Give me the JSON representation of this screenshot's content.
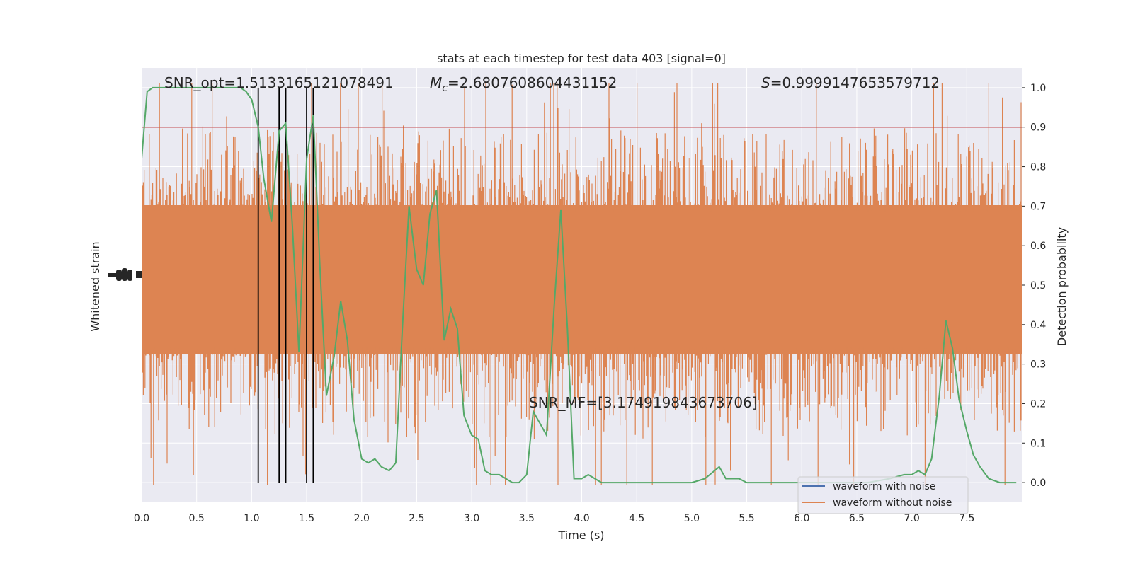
{
  "chart_data": {
    "type": "line",
    "title": "stats at each timestep for test data 403 [signal=0]",
    "xlabel": "Time (s)",
    "ylabel_left": "Whitened strain",
    "ylabel_right": "Detection probability",
    "xlim": [
      0.0,
      8.0
    ],
    "xticks": [
      "0.0",
      "0.5",
      "1.0",
      "1.5",
      "2.0",
      "2.5",
      "3.0",
      "3.5",
      "4.0",
      "4.5",
      "5.0",
      "5.5",
      "6.0",
      "6.5",
      "7.0",
      "7.5"
    ],
    "ylim_right": [
      -0.05,
      1.05
    ],
    "yticks_right": [
      "0.0",
      "0.1",
      "0.2",
      "0.3",
      "0.4",
      "0.5",
      "0.6",
      "0.7",
      "0.8",
      "0.9",
      "1.0"
    ],
    "threshold": 0.9,
    "detection_times": [
      1.06,
      1.25,
      1.31,
      1.5,
      1.56
    ],
    "annotations": {
      "snr_opt": "SNR_opt=1.5133165121078491",
      "mc_prefix": "M",
      "mc_sub": "c",
      "mc_value": "=2.6807608604431152",
      "s_prefix": "S",
      "s_value": "=0.9999147653579712",
      "snr_mf": "SNR_MF=[3.174919843673706]"
    },
    "legend": [
      "waveform with noise",
      "waveform without noise"
    ],
    "series": [
      {
        "name": "detection probability",
        "x": [
          0.0,
          0.05,
          0.1,
          0.15,
          0.2,
          0.25,
          0.3,
          0.35,
          0.4,
          0.45,
          0.5,
          0.55,
          0.6,
          0.65,
          0.7,
          0.75,
          0.8,
          0.85,
          0.9,
          0.95,
          1.0,
          1.06,
          1.11,
          1.18,
          1.25,
          1.31,
          1.37,
          1.43,
          1.5,
          1.56,
          1.62,
          1.68,
          1.75,
          1.81,
          1.87,
          1.93,
          2.0,
          2.06,
          2.12,
          2.18,
          2.25,
          2.31,
          2.37,
          2.43,
          2.5,
          2.56,
          2.62,
          2.68,
          2.75,
          2.81,
          2.87,
          2.93,
          3.0,
          3.06,
          3.12,
          3.18,
          3.25,
          3.31,
          3.37,
          3.43,
          3.5,
          3.56,
          3.62,
          3.68,
          3.75,
          3.81,
          3.87,
          3.93,
          4.0,
          4.06,
          4.12,
          4.18,
          4.25,
          4.31,
          4.37,
          4.43,
          4.5,
          4.6,
          4.7,
          4.8,
          4.9,
          5.0,
          5.12,
          5.25,
          5.31,
          5.37,
          5.43,
          5.5,
          5.56,
          5.62,
          5.7,
          5.8,
          5.9,
          6.0,
          6.2,
          6.4,
          6.6,
          6.8,
          6.93,
          7.0,
          7.06,
          7.12,
          7.18,
          7.25,
          7.31,
          7.37,
          7.43,
          7.5,
          7.56,
          7.62,
          7.7,
          7.8,
          7.95
        ],
        "y": [
          0.82,
          0.99,
          1.0,
          1.0,
          1.0,
          1.0,
          1.0,
          1.0,
          1.0,
          1.0,
          1.0,
          1.0,
          1.0,
          1.0,
          1.0,
          1.0,
          1.0,
          1.0,
          1.0,
          0.99,
          0.97,
          0.9,
          0.77,
          0.66,
          0.89,
          0.91,
          0.65,
          0.33,
          0.82,
          0.93,
          0.55,
          0.22,
          0.32,
          0.46,
          0.36,
          0.16,
          0.06,
          0.05,
          0.06,
          0.04,
          0.03,
          0.05,
          0.39,
          0.7,
          0.54,
          0.5,
          0.68,
          0.74,
          0.36,
          0.44,
          0.39,
          0.17,
          0.12,
          0.11,
          0.03,
          0.02,
          0.02,
          0.01,
          0.0,
          0.0,
          0.02,
          0.18,
          0.15,
          0.12,
          0.45,
          0.69,
          0.39,
          0.01,
          0.01,
          0.02,
          0.01,
          0.0,
          0.0,
          0.0,
          0.0,
          0.0,
          0.0,
          0.0,
          0.0,
          0.0,
          0.0,
          0.0,
          0.01,
          0.04,
          0.01,
          0.01,
          0.01,
          0.0,
          0.0,
          0.0,
          0.0,
          0.0,
          0.0,
          0.0,
          0.0,
          0.0,
          0.0,
          0.01,
          0.02,
          0.02,
          0.03,
          0.02,
          0.06,
          0.22,
          0.41,
          0.34,
          0.21,
          0.13,
          0.07,
          0.04,
          0.01,
          0.0,
          0.0
        ]
      }
    ]
  }
}
